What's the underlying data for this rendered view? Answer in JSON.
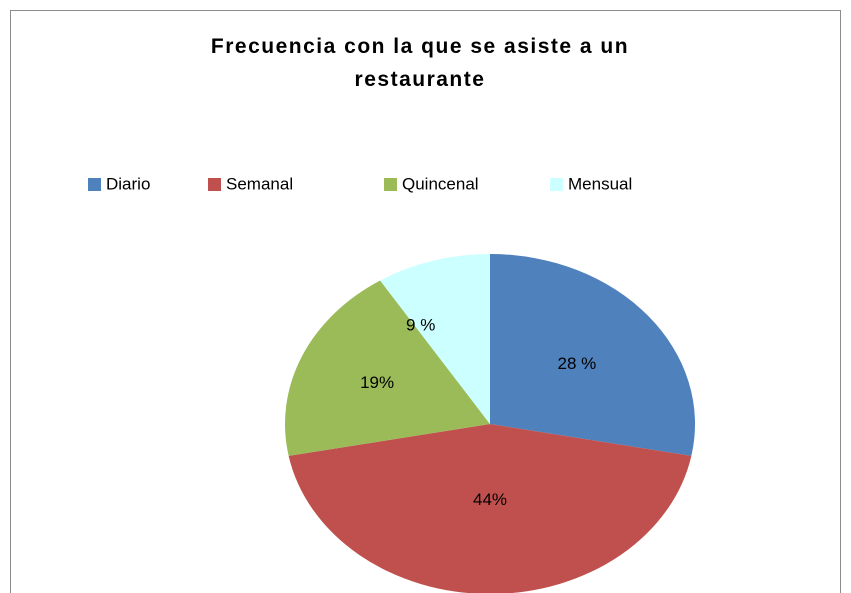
{
  "chart_data": {
    "type": "pie",
    "title": "Frecuencia con la que se asiste a un restaurante",
    "categories": [
      "Diario",
      "Semanal",
      "Quincenal",
      "Mensual"
    ],
    "values": [
      28,
      44,
      19,
      9
    ],
    "value_labels": [
      "28 %",
      "44%",
      "19%",
      "9 %"
    ],
    "colors": [
      "#4f81bd",
      "#c0504d",
      "#9bbb59",
      "#ccffff"
    ],
    "legend": "top"
  }
}
